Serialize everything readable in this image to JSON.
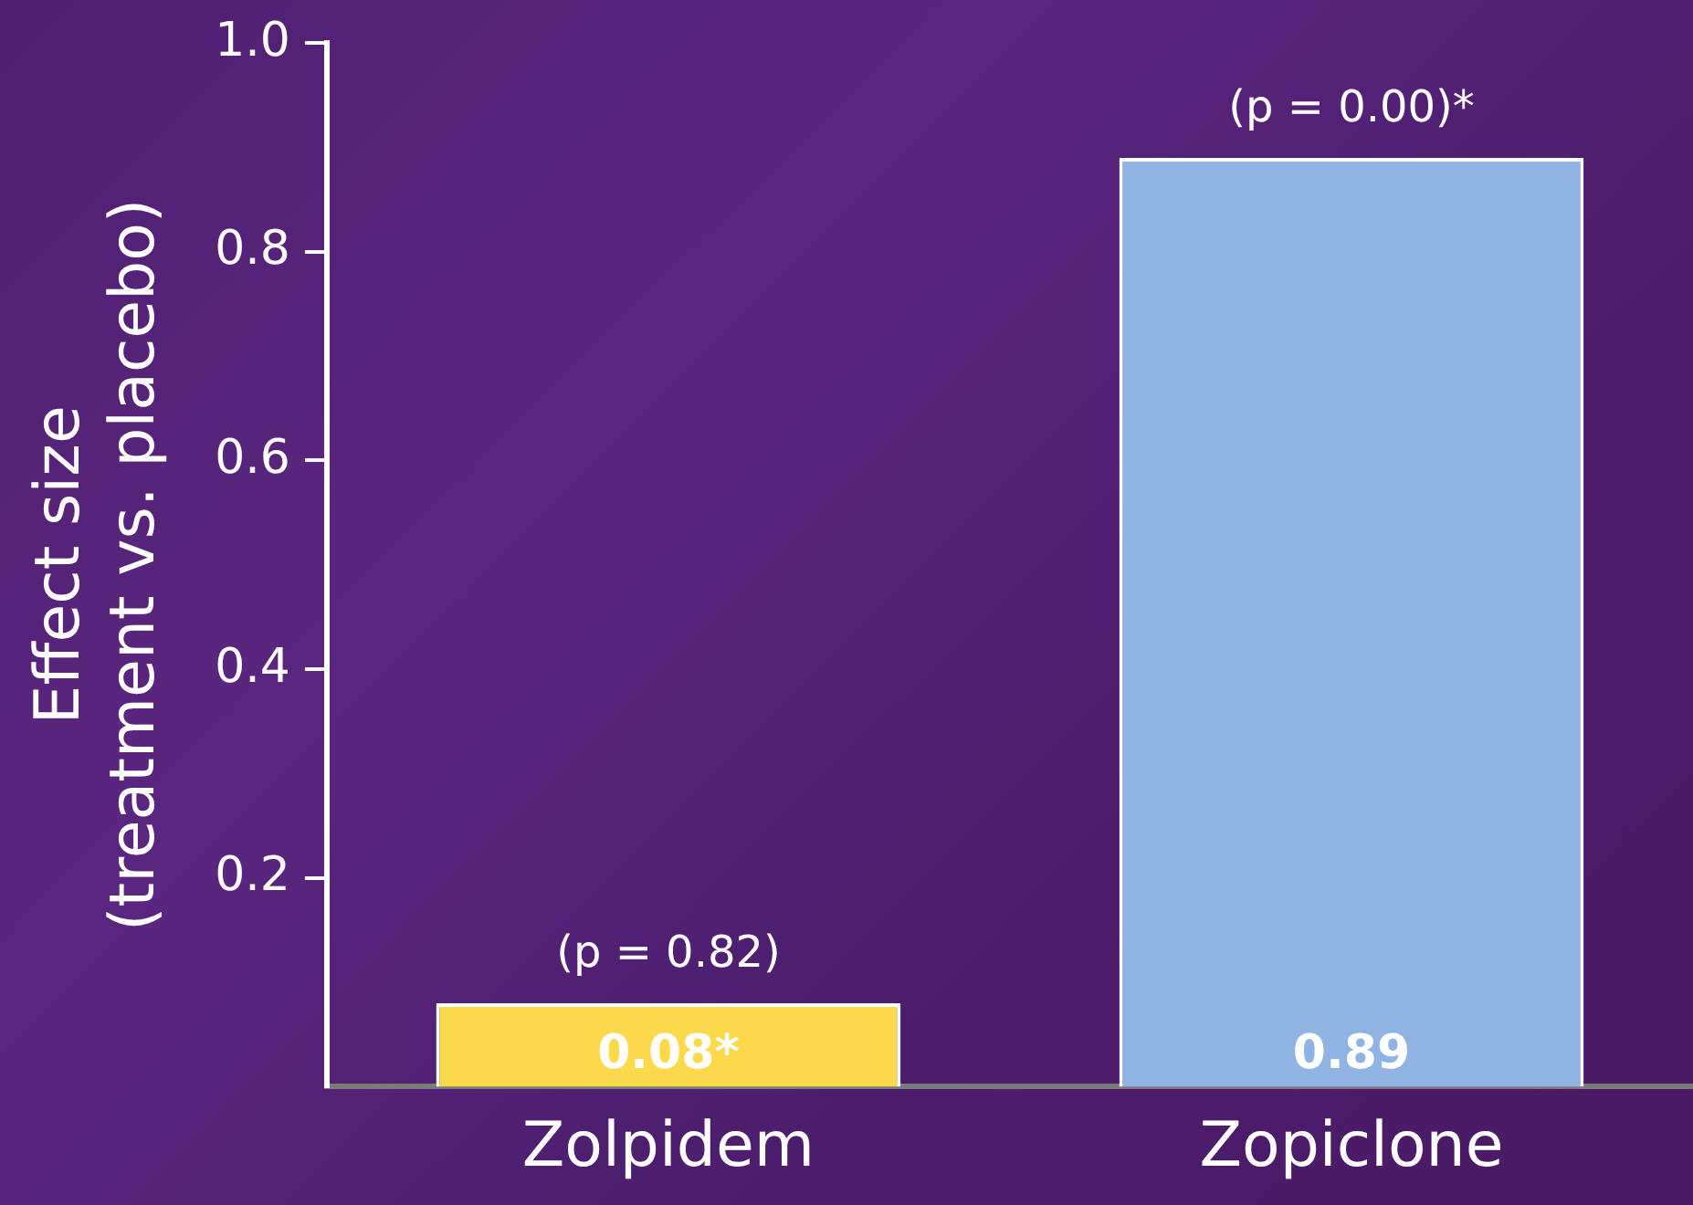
{
  "chart_data": {
    "type": "bar",
    "ylabel": "Effect size\n(treatment vs. placebo)",
    "categories": [
      "Zolpidem",
      "Zopiclone"
    ],
    "values": [
      0.08,
      0.89
    ],
    "colors": [
      "#fcd94a",
      "#8fb3e2"
    ],
    "value_labels": [
      "0.08*",
      "0.89"
    ],
    "annotations": [
      {
        "text": "(p = 0.82)",
        "x": "Zolpidem",
        "y": 0.08
      },
      {
        "text": "(p = 0.00)*",
        "x": "Zopiclone",
        "y": 0.89
      }
    ],
    "ylim": [
      0,
      1
    ],
    "yticks": [
      0.2,
      0.4,
      0.6,
      0.8,
      {
        "value": 1,
        "label": "1.0"
      }
    ],
    "grid": false,
    "legend": false
  }
}
